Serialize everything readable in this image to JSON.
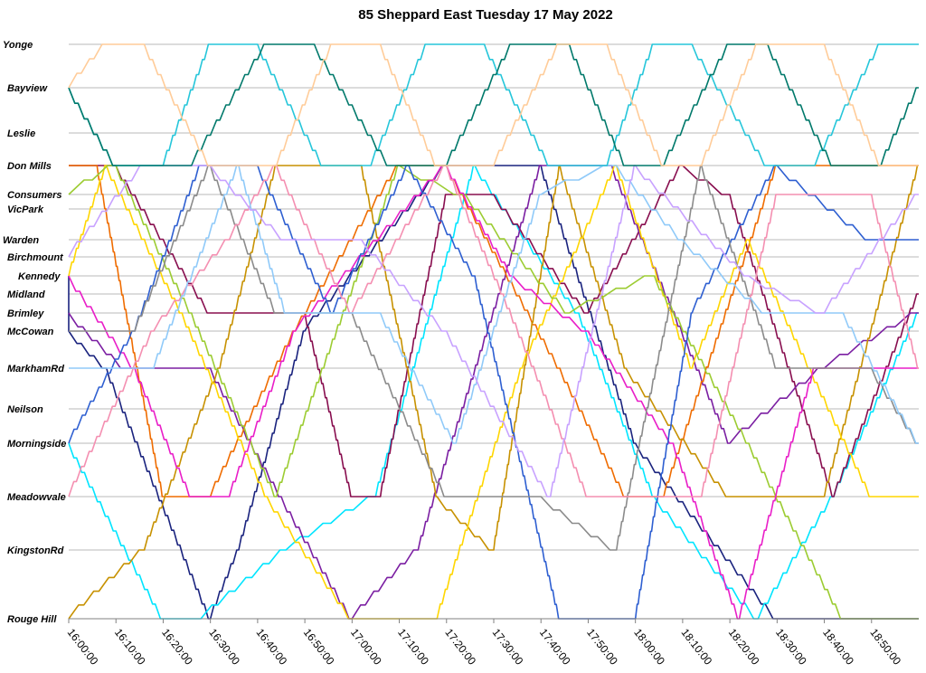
{
  "chart_data": {
    "type": "line",
    "title": "85 Sheppard East Tuesday 17 May 2022",
    "xlabel": "",
    "ylabel": "",
    "x_range": [
      "16:00:00",
      "19:00:00"
    ],
    "x_ticks": [
      "16:00:00",
      "16:10:00",
      "16:20:00",
      "16:30:00",
      "16:40:00",
      "16:50:00",
      "17:00:00",
      "17:10:00",
      "17:20:00",
      "17:30:00",
      "17:40:00",
      "17:50:00",
      "18:00:00",
      "18:10:00",
      "18:20:00",
      "18:30:00",
      "18:40:00",
      "18:50:00"
    ],
    "y_categories": [
      "Yonge",
      "Bayview",
      "Leslie",
      "Don Mills",
      "Consumers",
      "VicPark",
      "Warden",
      "Birchmount",
      "Kennedy",
      "Midland",
      "Brimley",
      "McCowan",
      "MarkhamRd",
      "Neilson",
      "Morningside",
      "Meadowvale",
      "KingstonRd",
      "Rouge Hill"
    ],
    "grid": true,
    "legend": "none",
    "series": [
      {
        "color": "#1a237e",
        "points": [
          [
            "16:00",
            "Kennedy"
          ],
          [
            "16:00",
            "McCowan"
          ],
          [
            "16:08",
            "MarkhamRd"
          ],
          [
            "16:30",
            "Rouge Hill"
          ],
          [
            "16:36",
            "KingstonRd"
          ],
          [
            "16:50",
            "McCowan"
          ],
          [
            "17:20",
            "Don Mills"
          ],
          [
            "17:40",
            "Don Mills"
          ],
          [
            "18:00",
            "Morningside"
          ],
          [
            "18:30",
            "Rouge Hill"
          ],
          [
            "18:52",
            "Rouge Hill"
          ],
          [
            "19:00",
            "Rouge Hill"
          ]
        ]
      },
      {
        "color": "#00e5ff",
        "points": [
          [
            "16:00",
            "Morningside"
          ],
          [
            "16:20",
            "Rouge Hill"
          ],
          [
            "16:28",
            "Rouge Hill"
          ],
          [
            "16:46",
            "KingstonRd"
          ],
          [
            "17:05",
            "Meadowvale"
          ],
          [
            "17:26",
            "Don Mills"
          ],
          [
            "17:48",
            "Brimley"
          ],
          [
            "18:04",
            "Meadowvale"
          ],
          [
            "18:26",
            "Rouge Hill"
          ],
          [
            "18:42",
            "Meadowvale"
          ],
          [
            "19:00",
            "Brimley"
          ]
        ]
      },
      {
        "color": "#880e4f",
        "points": [
          [
            "16:00",
            "Don Mills"
          ],
          [
            "16:10",
            "Don Mills"
          ],
          [
            "16:30",
            "Brimley"
          ],
          [
            "16:50",
            "Brimley"
          ],
          [
            "17:00",
            "Meadowvale"
          ],
          [
            "17:06",
            "Meadowvale"
          ],
          [
            "17:20",
            "Consumers"
          ],
          [
            "17:30",
            "Consumers"
          ],
          [
            "17:50",
            "Brimley"
          ],
          [
            "18:10",
            "Don Mills"
          ],
          [
            "18:20",
            "Consumers"
          ],
          [
            "18:42",
            "Meadowvale"
          ],
          [
            "19:00",
            "Midland"
          ]
        ]
      },
      {
        "color": "#7b1fa2",
        "points": [
          [
            "16:00",
            "Brimley"
          ],
          [
            "16:12",
            "MarkhamRd"
          ],
          [
            "16:30",
            "MarkhamRd"
          ],
          [
            "16:45",
            "Meadowvale"
          ],
          [
            "17:00",
            "Rouge Hill"
          ],
          [
            "17:14",
            "KingstonRd"
          ],
          [
            "17:40",
            "Don Mills"
          ],
          [
            "17:55",
            "Don Mills"
          ],
          [
            "18:20",
            "Morningside"
          ],
          [
            "18:40",
            "MarkhamRd"
          ],
          [
            "19:00",
            "Brimley"
          ]
        ]
      },
      {
        "color": "#ef6c00",
        "points": [
          [
            "16:00",
            "Don Mills"
          ],
          [
            "16:06",
            "Don Mills"
          ],
          [
            "16:20",
            "Meadowvale"
          ],
          [
            "16:30",
            "Meadowvale"
          ],
          [
            "16:48",
            "McCowan"
          ],
          [
            "17:10",
            "Don Mills"
          ],
          [
            "17:20",
            "Don Mills"
          ],
          [
            "17:44",
            "MarkhamRd"
          ],
          [
            "17:58",
            "Meadowvale"
          ],
          [
            "18:06",
            "Meadowvale"
          ],
          [
            "18:30",
            "Don Mills"
          ],
          [
            "19:00",
            "Don Mills"
          ]
        ]
      },
      {
        "color": "#c79100",
        "points": [
          [
            "16:00",
            "Rouge Hill"
          ],
          [
            "16:16",
            "KingstonRd"
          ],
          [
            "16:32",
            "MarkhamRd"
          ],
          [
            "16:44",
            "Don Mills"
          ],
          [
            "17:02",
            "Don Mills"
          ],
          [
            "17:18",
            "Meadowvale"
          ],
          [
            "17:30",
            "KingstonRd"
          ],
          [
            "17:44",
            "Don Mills"
          ],
          [
            "17:58",
            "MarkhamRd"
          ],
          [
            "18:20",
            "Meadowvale"
          ],
          [
            "18:40",
            "Meadowvale"
          ],
          [
            "19:00",
            "Don Mills"
          ]
        ]
      },
      {
        "color": "#ffd600",
        "points": [
          [
            "16:00",
            "Kennedy"
          ],
          [
            "16:08",
            "Don Mills"
          ],
          [
            "16:24",
            "Brimley"
          ],
          [
            "16:42",
            "Meadowvale"
          ],
          [
            "17:00",
            "Rouge Hill"
          ],
          [
            "17:18",
            "Rouge Hill"
          ],
          [
            "17:36",
            "MarkhamRd"
          ],
          [
            "17:56",
            "Don Mills"
          ],
          [
            "18:12",
            "MarkhamRd"
          ],
          [
            "18:24",
            "Warden"
          ],
          [
            "18:50",
            "Meadowvale"
          ],
          [
            "19:00",
            "Meadowvale"
          ]
        ]
      },
      {
        "color": "#9ccc32",
        "points": [
          [
            "16:00",
            "Consumers"
          ],
          [
            "16:10",
            "Don Mills"
          ],
          [
            "16:26",
            "Brimley"
          ],
          [
            "16:44",
            "Meadowvale"
          ],
          [
            "16:54",
            "MarkhamRd"
          ],
          [
            "17:10",
            "Don Mills"
          ],
          [
            "17:24",
            "Consumers"
          ],
          [
            "17:46",
            "Brimley"
          ],
          [
            "18:04",
            "Kennedy"
          ],
          [
            "18:24",
            "Morningside"
          ],
          [
            "18:44",
            "Rouge Hill"
          ],
          [
            "19:00",
            "Rouge Hill"
          ]
        ]
      },
      {
        "color": "#e91ec8",
        "points": [
          [
            "16:00",
            "Kennedy"
          ],
          [
            "16:14",
            "MarkhamRd"
          ],
          [
            "16:26",
            "Meadowvale"
          ],
          [
            "16:34",
            "Meadowvale"
          ],
          [
            "16:48",
            "McCowan"
          ],
          [
            "17:20",
            "Don Mills"
          ],
          [
            "17:34",
            "Kennedy"
          ],
          [
            "17:50",
            "McCowan"
          ],
          [
            "18:08",
            "Morningside"
          ],
          [
            "18:22",
            "Rouge Hill"
          ],
          [
            "18:38",
            "MarkhamRd"
          ],
          [
            "19:00",
            "MarkhamRd"
          ]
        ]
      },
      {
        "color": "#2e5fd1",
        "points": [
          [
            "16:00",
            "Morningside"
          ],
          [
            "16:14",
            "McCowan"
          ],
          [
            "16:28",
            "Don Mills"
          ],
          [
            "16:40",
            "Don Mills"
          ],
          [
            "16:56",
            "Brimley"
          ],
          [
            "17:12",
            "Don Mills"
          ],
          [
            "17:26",
            "Kennedy"
          ],
          [
            "17:44",
            "Rouge Hill"
          ],
          [
            "18:00",
            "Rouge Hill"
          ],
          [
            "18:12",
            "Brimley"
          ],
          [
            "18:30",
            "Don Mills"
          ],
          [
            "18:50",
            "Warden"
          ],
          [
            "19:00",
            "Warden"
          ]
        ]
      },
      {
        "color": "#8b8b8b",
        "points": [
          [
            "16:00",
            "McCowan"
          ],
          [
            "16:14",
            "McCowan"
          ],
          [
            "16:30",
            "Don Mills"
          ],
          [
            "16:44",
            "Brimley"
          ],
          [
            "17:00",
            "Brimley"
          ],
          [
            "17:20",
            "Meadowvale"
          ],
          [
            "17:40",
            "Meadowvale"
          ],
          [
            "17:56",
            "KingstonRd"
          ],
          [
            "18:14",
            "Don Mills"
          ],
          [
            "18:30",
            "MarkhamRd"
          ],
          [
            "18:50",
            "MarkhamRd"
          ],
          [
            "19:00",
            "Morningside"
          ]
        ]
      },
      {
        "color": "#f48fb1",
        "points": [
          [
            "16:00",
            "Meadowvale"
          ],
          [
            "16:18",
            "McCowan"
          ],
          [
            "16:34",
            "Warden"
          ],
          [
            "16:44",
            "Don Mills"
          ],
          [
            "17:00",
            "Brimley"
          ],
          [
            "17:20",
            "Don Mills"
          ],
          [
            "17:32",
            "Midland"
          ],
          [
            "17:50",
            "Meadowvale"
          ],
          [
            "18:14",
            "Meadowvale"
          ],
          [
            "18:30",
            "Consumers"
          ],
          [
            "18:50",
            "Consumers"
          ],
          [
            "19:00",
            "MarkhamRd"
          ]
        ]
      },
      {
        "color": "#90caf9",
        "points": [
          [
            "16:00",
            "MarkhamRd"
          ],
          [
            "16:18",
            "MarkhamRd"
          ],
          [
            "16:36",
            "Don Mills"
          ],
          [
            "16:46",
            "Brimley"
          ],
          [
            "17:06",
            "Brimley"
          ],
          [
            "17:22",
            "Morningside"
          ],
          [
            "17:40",
            "Consumers"
          ],
          [
            "17:56",
            "Don Mills"
          ],
          [
            "18:10",
            "Warden"
          ],
          [
            "18:28",
            "Brimley"
          ],
          [
            "18:44",
            "Brimley"
          ],
          [
            "19:00",
            "Morningside"
          ]
        ]
      },
      {
        "color": "#c8a2ff",
        "points": [
          [
            "16:00",
            "Birchmount"
          ],
          [
            "16:16",
            "Don Mills"
          ],
          [
            "16:30",
            "Don Mills"
          ],
          [
            "16:46",
            "Warden"
          ],
          [
            "17:02",
            "Warden"
          ],
          [
            "17:20",
            "McCowan"
          ],
          [
            "17:42",
            "Meadowvale"
          ],
          [
            "18:00",
            "Don Mills"
          ],
          [
            "18:24",
            "Kennedy"
          ],
          [
            "18:40",
            "Brimley"
          ],
          [
            "19:00",
            "Consumers"
          ]
        ]
      },
      {
        "color": "#26c6da",
        "points": [
          [
            "16:00",
            "Bayview"
          ],
          [
            "16:10",
            "Don Mills"
          ],
          [
            "16:20",
            "Don Mills"
          ],
          [
            "16:30",
            "Yonge"
          ],
          [
            "16:40",
            "Yonge"
          ],
          [
            "16:54",
            "Don Mills"
          ],
          [
            "17:04",
            "Don Mills"
          ],
          [
            "17:16",
            "Yonge"
          ],
          [
            "17:28",
            "Yonge"
          ],
          [
            "17:42",
            "Don Mills"
          ],
          [
            "17:54",
            "Don Mills"
          ],
          [
            "18:04",
            "Yonge"
          ],
          [
            "18:12",
            "Yonge"
          ],
          [
            "18:28",
            "Don Mills"
          ],
          [
            "18:38",
            "Don Mills"
          ],
          [
            "18:52",
            "Yonge"
          ],
          [
            "19:00",
            "Yonge"
          ]
        ]
      },
      {
        "color": "#00796b",
        "points": [
          [
            "16:00",
            "Bayview"
          ],
          [
            "16:10",
            "Don Mills"
          ],
          [
            "16:26",
            "Don Mills"
          ],
          [
            "16:42",
            "Yonge"
          ],
          [
            "16:52",
            "Yonge"
          ],
          [
            "17:08",
            "Don Mills"
          ],
          [
            "17:20",
            "Don Mills"
          ],
          [
            "17:34",
            "Yonge"
          ],
          [
            "17:46",
            "Yonge"
          ],
          [
            "17:58",
            "Don Mills"
          ],
          [
            "18:06",
            "Don Mills"
          ],
          [
            "18:20",
            "Yonge"
          ],
          [
            "18:28",
            "Yonge"
          ],
          [
            "18:42",
            "Don Mills"
          ],
          [
            "18:52",
            "Don Mills"
          ],
          [
            "19:00",
            "Bayview"
          ]
        ]
      },
      {
        "color": "#ffcc99",
        "points": [
          [
            "16:00",
            "Bayview"
          ],
          [
            "16:08",
            "Yonge"
          ],
          [
            "16:16",
            "Yonge"
          ],
          [
            "16:30",
            "Don Mills"
          ],
          [
            "16:44",
            "Don Mills"
          ],
          [
            "16:56",
            "Yonge"
          ],
          [
            "17:06",
            "Yonge"
          ],
          [
            "17:18",
            "Don Mills"
          ],
          [
            "17:30",
            "Don Mills"
          ],
          [
            "17:44",
            "Yonge"
          ],
          [
            "17:54",
            "Yonge"
          ],
          [
            "18:06",
            "Don Mills"
          ],
          [
            "18:14",
            "Don Mills"
          ],
          [
            "18:26",
            "Yonge"
          ],
          [
            "18:40",
            "Yonge"
          ],
          [
            "18:52",
            "Don Mills"
          ],
          [
            "19:00",
            "Don Mills"
          ]
        ]
      }
    ]
  }
}
